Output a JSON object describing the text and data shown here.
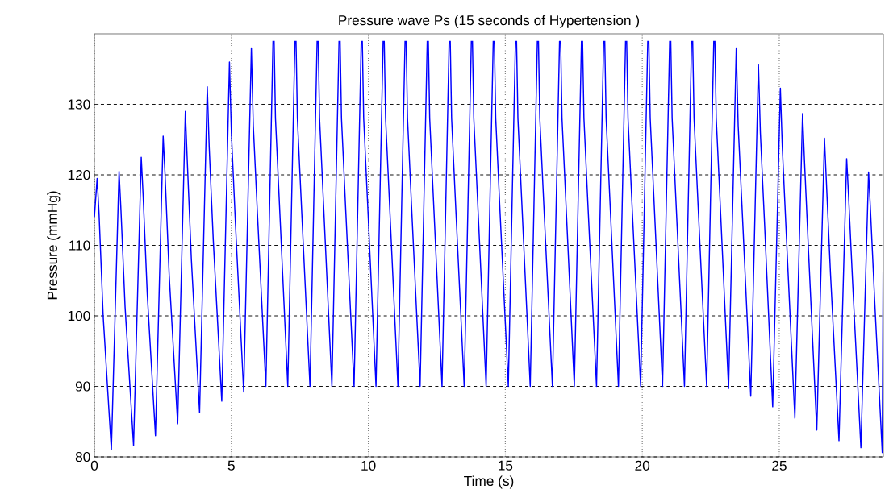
{
  "chart_data": {
    "type": "line",
    "title": "Pressure wave Ps (15 seconds of Hypertension )",
    "xlabel": "Time (s)",
    "ylabel": "Pressure (mmHg)",
    "xlim": [
      0,
      28.8
    ],
    "ylim": [
      80,
      140
    ],
    "xticks": [
      0,
      5,
      10,
      15,
      20,
      25
    ],
    "yticks": [
      80,
      90,
      100,
      110,
      120,
      130
    ],
    "grid": true,
    "marker": "none",
    "line_style": "solid",
    "series": [
      {
        "color": "#0000ff",
        "x": [
          0,
          0.1,
          0.17,
          0.32,
          0.62,
          0.9,
          0.97,
          1.12,
          1.43,
          1.71,
          1.78,
          1.93,
          2.23,
          2.51,
          2.58,
          2.73,
          3.04,
          3.32,
          3.39,
          3.54,
          3.84,
          4.12,
          4.19,
          4.34,
          4.65,
          4.93,
          5.0,
          5.15,
          5.45,
          5.73,
          5.8,
          5.95,
          6.26,
          6.52,
          6.54,
          6.56,
          6.61,
          6.76,
          7.06,
          7.32,
          7.34,
          7.36,
          7.41,
          7.56,
          7.87,
          8.13,
          8.15,
          8.17,
          8.22,
          8.37,
          8.67,
          8.93,
          8.95,
          8.97,
          9.02,
          9.17,
          9.48,
          9.74,
          9.76,
          9.78,
          9.83,
          9.98,
          10.28,
          10.54,
          10.56,
          10.58,
          10.63,
          10.78,
          11.08,
          11.34,
          11.36,
          11.38,
          11.43,
          11.58,
          11.89,
          12.15,
          12.17,
          12.19,
          12.24,
          12.39,
          12.69,
          12.95,
          12.97,
          12.99,
          13.04,
          13.19,
          13.5,
          13.76,
          13.78,
          13.8,
          13.85,
          14.0,
          14.3,
          14.56,
          14.58,
          14.6,
          14.65,
          14.8,
          15.11,
          15.37,
          15.39,
          15.41,
          15.46,
          15.61,
          15.91,
          16.17,
          16.19,
          16.21,
          16.26,
          16.41,
          16.72,
          16.98,
          17.0,
          17.02,
          17.07,
          17.22,
          17.52,
          17.78,
          17.8,
          17.82,
          17.87,
          18.02,
          18.33,
          18.59,
          18.61,
          18.63,
          18.68,
          18.83,
          19.13,
          19.39,
          19.41,
          19.43,
          19.48,
          19.63,
          19.94,
          20.2,
          20.22,
          20.24,
          20.29,
          20.44,
          20.74,
          21.0,
          21.02,
          21.04,
          21.09,
          21.24,
          21.54,
          21.8,
          21.82,
          21.84,
          21.89,
          22.04,
          22.35,
          22.61,
          22.63,
          22.65,
          22.7,
          22.85,
          23.15,
          23.43,
          23.5,
          23.65,
          23.96,
          24.24,
          24.31,
          24.46,
          24.76,
          25.04,
          25.11,
          25.26,
          25.57,
          25.85,
          25.92,
          26.07,
          26.37,
          26.65,
          26.72,
          26.87,
          27.18,
          27.46,
          27.53,
          27.68,
          27.98,
          28.26,
          28.33,
          28.48,
          28.76,
          28.8
        ],
        "values": [
          114,
          119.5,
          114.5,
          100,
          81,
          120.5,
          115,
          101.3,
          81.6,
          122.5,
          117,
          103.1,
          83,
          125.5,
          120,
          105.8,
          84.7,
          129,
          122,
          108,
          86.3,
          132.5,
          124,
          110.7,
          87.9,
          136,
          126,
          113,
          89.2,
          138,
          127,
          114.6,
          90,
          139,
          null,
          139,
          128,
          115.4,
          90,
          139,
          null,
          139,
          128,
          115.4,
          90,
          139,
          null,
          139,
          128,
          115.4,
          90,
          139,
          null,
          139,
          128,
          115.4,
          90,
          139,
          null,
          139,
          128,
          115.4,
          90,
          139,
          null,
          139,
          128,
          115.4,
          90,
          139,
          null,
          139,
          128,
          115.4,
          90,
          139,
          null,
          139,
          128,
          115.4,
          90,
          139,
          null,
          139,
          128,
          115.4,
          90,
          139,
          null,
          139,
          128,
          115.4,
          90,
          139,
          null,
          139,
          128,
          115.4,
          90,
          139,
          null,
          139,
          128,
          115.4,
          90,
          139,
          null,
          139,
          128,
          115.4,
          90,
          139,
          null,
          139,
          128,
          115.4,
          90,
          139,
          null,
          139,
          128,
          115.4,
          90,
          139,
          null,
          139,
          128,
          115.4,
          90,
          139,
          null,
          139,
          128,
          115.4,
          90,
          139,
          null,
          139,
          128,
          115.4,
          90,
          139,
          null,
          139,
          128,
          115.4,
          90,
          139,
          null,
          139,
          128,
          115.4,
          90,
          139,
          null,
          139,
          128,
          115.4,
          89.7,
          138,
          127,
          114.7,
          88.6,
          135.6,
          126,
          113.4,
          87.1,
          132.3,
          124,
          111.3,
          85.5,
          128.7,
          122,
          109,
          83.8,
          125.2,
          119,
          106,
          82.3,
          122.3,
          117,
          104.6,
          81.3,
          120.4,
          115,
          102.4,
          80.6,
          114
        ]
      }
    ]
  }
}
